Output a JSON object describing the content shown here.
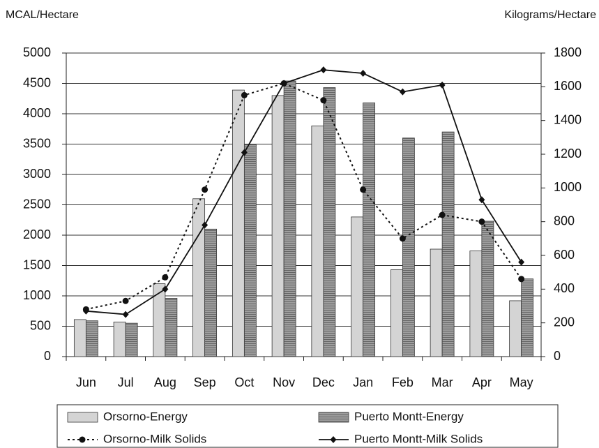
{
  "chart_data": {
    "type": "bar",
    "y_label": "MCAL/Hectare",
    "y2_label": "Kilograms/Hectare",
    "categories": [
      "Jun",
      "Jul",
      "Aug",
      "Sep",
      "Oct",
      "Nov",
      "Dec",
      "Jan",
      "Feb",
      "Mar",
      "Apr",
      "May"
    ],
    "series": [
      {
        "name": "Orsorno-Energy",
        "type": "bar",
        "color": "#d4d4d4",
        "values": [
          610,
          570,
          1200,
          2600,
          4390,
          4300,
          3800,
          2300,
          1430,
          1770,
          1740,
          920
        ]
      },
      {
        "name": "Puerto Montt-Energy",
        "type": "bar",
        "color": "#9e9e9e",
        "values": [
          590,
          550,
          960,
          2100,
          3500,
          4540,
          4430,
          4180,
          3600,
          3700,
          2230,
          1280
        ]
      },
      {
        "name": "Orsorno-Milk Solids",
        "type": "line",
        "axis": "y2",
        "color": "#111111",
        "line_style": "dotted",
        "marker": "circle",
        "values": [
          280,
          330,
          470,
          990,
          1550,
          1620,
          1520,
          990,
          700,
          840,
          800,
          460
        ]
      },
      {
        "name": "Puerto Montt-Milk Solids",
        "type": "line",
        "axis": "y2",
        "color": "#111111",
        "line_style": "solid",
        "marker": "diamond",
        "values": [
          270,
          250,
          400,
          780,
          1210,
          1620,
          1700,
          1680,
          1570,
          1610,
          930,
          560
        ]
      }
    ],
    "ylim": [
      0,
      5000
    ],
    "yticks": [
      0,
      500,
      1000,
      1500,
      2000,
      2500,
      3000,
      3500,
      4000,
      4500,
      5000
    ],
    "y2lim": [
      0,
      1800
    ],
    "y2ticks": [
      0,
      200,
      400,
      600,
      800,
      1000,
      1200,
      1400,
      1600,
      1800
    ],
    "grid": true,
    "legend": "bottom"
  }
}
